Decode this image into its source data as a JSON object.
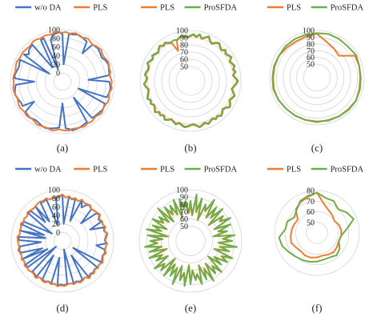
{
  "figure": {
    "captions": [
      "(a)",
      "(b)",
      "(c)",
      "(d)",
      "(e)",
      "(f)"
    ],
    "colors": {
      "blue": "#4472C4",
      "orange": "#ED7D31",
      "green": "#70AD47",
      "grid": "#d4d4d4"
    }
  },
  "chart_data": [
    {
      "type": "radar",
      "caption": "(a)",
      "rlim": [
        -20,
        100
      ],
      "ticks": [
        0,
        20,
        40,
        60,
        80,
        100
      ],
      "legend": [
        "w/o DA",
        "PLS"
      ],
      "legend_position": "top",
      "series": [
        {
          "name": "w/o DA",
          "color": "#4472C4",
          "values": [
            90,
            20,
            92,
            91,
            93,
            94,
            92,
            90,
            88,
            60,
            90,
            91,
            92,
            90,
            88,
            86,
            90,
            92,
            93,
            91,
            90,
            89,
            40,
            88,
            90,
            92,
            91,
            90,
            88,
            20,
            90,
            92,
            93,
            91,
            90,
            89,
            88,
            25,
            89,
            90,
            92,
            93,
            94,
            95,
            90,
            88,
            30,
            86,
            88,
            90,
            92,
            94,
            93,
            91,
            89,
            88,
            90,
            92,
            91,
            90,
            60,
            88,
            87,
            89,
            91,
            93,
            92,
            90,
            88,
            45,
            90,
            91,
            89,
            87,
            86,
            88,
            90,
            15,
            89,
            80,
            86,
            88,
            90,
            20,
            30,
            88,
            89,
            10,
            80,
            90,
            92,
            94
          ]
        },
        {
          "name": "PLS",
          "color": "#ED7D31",
          "values": [
            93,
            95,
            92,
            94,
            96,
            93,
            91,
            94,
            95,
            92,
            90,
            93,
            94,
            96,
            92,
            91,
            93,
            95,
            94,
            92,
            93,
            90,
            92,
            94,
            93,
            95,
            92,
            91,
            94,
            95,
            93,
            92,
            94,
            96,
            93,
            91,
            93,
            94,
            92,
            95,
            94,
            93,
            92,
            91,
            94,
            93,
            92,
            90,
            93,
            95,
            94,
            92,
            93,
            94,
            95,
            92,
            91,
            93,
            94,
            92,
            93,
            95,
            94,
            92,
            90,
            93,
            94,
            95,
            93,
            92,
            94,
            93,
            91,
            92,
            94,
            95,
            93,
            92,
            94,
            93,
            92,
            91,
            93,
            95,
            94,
            92,
            93,
            94,
            92,
            93,
            95,
            94
          ]
        }
      ]
    },
    {
      "type": "radar",
      "caption": "(b)",
      "rlim": [
        30,
        100
      ],
      "ticks": [
        50,
        60,
        70,
        80,
        90,
        100
      ],
      "legend": [
        "PLS",
        "ProSFDA"
      ],
      "legend_position": "top",
      "series": [
        {
          "name": "PLS",
          "color": "#ED7D31",
          "values": [
            92,
            94,
            91,
            95,
            90,
            93,
            96,
            91,
            89,
            93,
            95,
            92,
            90,
            94,
            91,
            93,
            95,
            90,
            92,
            94,
            91,
            93,
            89,
            92,
            95,
            93,
            90,
            88,
            91,
            94,
            92,
            90,
            93,
            95,
            91,
            89,
            92,
            94,
            91,
            93,
            90,
            92,
            94,
            91,
            93,
            95,
            92,
            90,
            91,
            93,
            94,
            92,
            90,
            93,
            91,
            89,
            92,
            94,
            90,
            93,
            91,
            95,
            92,
            90,
            93,
            91,
            94,
            92,
            90,
            89,
            92,
            94,
            91,
            90,
            93,
            92,
            90,
            91,
            94,
            92,
            90,
            93,
            91,
            89,
            92,
            94,
            91,
            93,
            90,
            88,
            75,
            89,
            91,
            93,
            92,
            90
          ]
        },
        {
          "name": "ProSFDA",
          "color": "#70AD47",
          "values": [
            93,
            95,
            92,
            96,
            91,
            94,
            97,
            92,
            90,
            94,
            96,
            93,
            91,
            95,
            92,
            94,
            96,
            91,
            93,
            95,
            92,
            94,
            90,
            93,
            96,
            94,
            91,
            89,
            92,
            95,
            93,
            91,
            94,
            96,
            92,
            90,
            93,
            95,
            92,
            94,
            91,
            93,
            95,
            92,
            94,
            96,
            93,
            91,
            92,
            94,
            95,
            93,
            91,
            94,
            92,
            90,
            93,
            95,
            91,
            94,
            92,
            96,
            93,
            91,
            94,
            92,
            95,
            93,
            91,
            90,
            93,
            95,
            92,
            91,
            94,
            93,
            91,
            92,
            95,
            93,
            91,
            94,
            92,
            90,
            93,
            95,
            92,
            94,
            91,
            90,
            91,
            90,
            92,
            94,
            93,
            91
          ]
        }
      ]
    },
    {
      "type": "radar",
      "caption": "(c)",
      "rlim": [
        30,
        100
      ],
      "ticks": [
        50,
        60,
        70,
        80,
        90,
        100
      ],
      "legend": [
        "PLS",
        "ProSFDA"
      ],
      "legend_position": "top",
      "series": [
        {
          "name": "PLS",
          "color": "#ED7D31",
          "values": [
            95,
            85,
            80,
            76,
            95,
            95,
            94,
            95,
            97,
            96,
            96,
            96,
            95,
            95,
            95,
            95,
            96,
            96,
            95,
            95,
            95,
            93,
            92,
            93
          ]
        },
        {
          "name": "ProSFDA",
          "color": "#70AD47",
          "values": [
            96,
            97,
            96,
            95,
            97,
            95,
            95,
            96,
            97,
            97,
            96,
            95,
            96,
            95,
            95,
            95,
            96,
            97,
            96,
            96,
            95,
            96,
            96,
            96
          ]
        }
      ]
    },
    {
      "type": "radar",
      "caption": "(d)",
      "rlim": [
        -20,
        100
      ],
      "ticks": [
        0,
        20,
        40,
        60,
        80,
        100
      ],
      "legend": [
        "w/o DA",
        "PLS"
      ],
      "legend_position": "top",
      "series": [
        {
          "name": "w/o DA",
          "color": "#4472C4",
          "values": [
            88,
            20,
            85,
            80,
            84,
            30,
            86,
            70,
            82,
            85,
            80,
            40,
            83,
            86,
            78,
            82,
            50,
            84,
            80,
            86,
            82,
            79,
            83,
            60,
            81,
            84,
            80,
            82,
            85,
            10,
            83,
            80,
            84,
            81,
            86,
            20,
            82,
            84,
            80,
            83,
            0,
            81,
            84,
            82,
            85,
            20,
            83,
            80,
            84,
            82,
            20,
            85,
            81,
            80,
            0,
            82,
            84,
            20,
            83,
            30,
            81,
            84,
            80,
            30,
            82,
            84,
            20,
            81,
            25,
            84,
            80,
            30,
            10,
            84,
            82,
            40,
            81,
            35,
            84,
            82,
            85,
            20,
            30,
            82,
            84
          ]
        },
        {
          "name": "PLS",
          "color": "#ED7D31",
          "values": [
            89,
            82,
            86,
            81,
            85,
            80,
            87,
            83,
            84,
            86,
            81,
            83,
            85,
            88,
            80,
            84,
            82,
            86,
            81,
            87,
            84,
            80,
            85,
            83,
            82,
            86,
            81,
            84,
            87,
            82,
            85,
            81,
            86,
            83,
            88,
            80,
            84,
            86,
            82,
            85,
            81,
            83,
            86,
            84,
            87,
            82,
            85,
            81,
            86,
            84,
            80,
            87,
            83,
            82,
            85,
            84,
            86,
            81,
            85,
            82,
            83,
            86,
            82,
            84,
            85,
            86,
            81,
            83,
            82,
            86,
            82,
            84,
            81,
            86,
            84,
            82,
            83,
            85,
            86,
            84,
            87,
            82,
            84,
            83,
            86
          ]
        }
      ]
    },
    {
      "type": "radar",
      "caption": "(e)",
      "rlim": [
        30,
        100
      ],
      "ticks": [
        50,
        60,
        70,
        80,
        90,
        100
      ],
      "legend": [
        "PLS",
        "ProSFDA"
      ],
      "legend_position": "top",
      "series": [
        {
          "name": "PLS",
          "color": "#ED7D31",
          "values": [
            80,
            65,
            92,
            70,
            88,
            60,
            82,
            75,
            93,
            68,
            86,
            72,
            90,
            63,
            84,
            78,
            91,
            66,
            87,
            70,
            80,
            62,
            89,
            74,
            85,
            68,
            92,
            71,
            83,
            64,
            90,
            77,
            86,
            69,
            81,
            62,
            88,
            75,
            84,
            67,
            91,
            72,
            85,
            65,
            89,
            76,
            82,
            70,
            87,
            63,
            90,
            74,
            84,
            66,
            92,
            71,
            83,
            68,
            88,
            62,
            85,
            77,
            90,
            67,
            82,
            73,
            89,
            64,
            86,
            70,
            91,
            75,
            83,
            68,
            87,
            61,
            90,
            72,
            84,
            66,
            88,
            74,
            82,
            69,
            91,
            65,
            86,
            73,
            84,
            70,
            89,
            64,
            87,
            75,
            83,
            68
          ]
        },
        {
          "name": "ProSFDA",
          "color": "#70AD47",
          "values": [
            85,
            66,
            94,
            72,
            90,
            61,
            84,
            76,
            95,
            69,
            88,
            73,
            92,
            64,
            86,
            79,
            93,
            67,
            89,
            71,
            82,
            63,
            91,
            75,
            87,
            69,
            94,
            72,
            85,
            65,
            92,
            78,
            88,
            70,
            83,
            63,
            90,
            76,
            86,
            68,
            93,
            73,
            87,
            66,
            91,
            77,
            84,
            71,
            89,
            64,
            92,
            75,
            86,
            67,
            94,
            72,
            85,
            69,
            90,
            63,
            87,
            78,
            92,
            68,
            84,
            74,
            91,
            65,
            88,
            71,
            93,
            76,
            85,
            69,
            89,
            62,
            92,
            73,
            86,
            67,
            90,
            75,
            84,
            70,
            93,
            66,
            88,
            74,
            86,
            71,
            91,
            65,
            89,
            76,
            85,
            69
          ]
        }
      ]
    },
    {
      "type": "radar",
      "caption": "(f)",
      "rlim": [
        40,
        80
      ],
      "ticks": [
        50,
        60,
        70,
        80
      ],
      "legend": [
        "PLS",
        "ProSFDA"
      ],
      "legend_position": "top",
      "series": [
        {
          "name": "PLS",
          "color": "#ED7D31",
          "values": [
            78,
            68,
            64,
            62,
            60,
            62,
            63,
            63,
            62,
            63,
            64,
            63,
            62,
            63,
            64,
            64,
            63,
            64,
            66,
            65,
            64,
            63,
            62,
            70,
            73,
            75
          ]
        },
        {
          "name": "ProSFDA",
          "color": "#70AD47",
          "values": [
            78,
            74,
            74,
            70,
            74,
            77,
            68,
            63,
            62,
            66,
            68,
            66,
            66,
            67,
            68,
            69,
            70,
            72,
            75,
            76,
            70,
            70,
            66,
            69,
            74,
            76
          ]
        }
      ]
    }
  ]
}
